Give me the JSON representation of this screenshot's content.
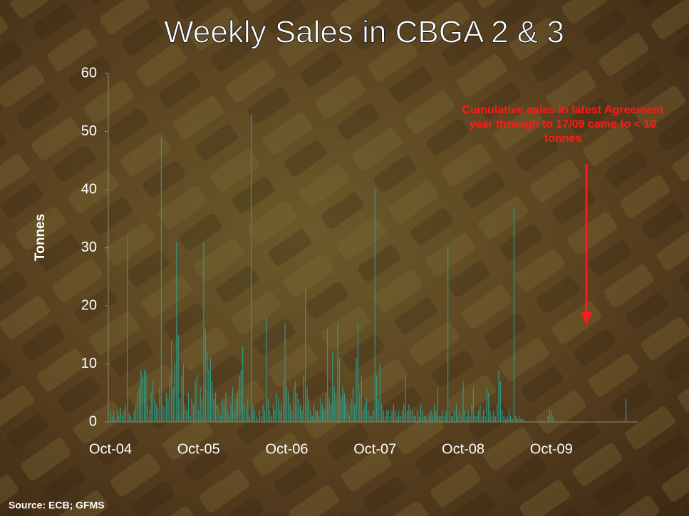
{
  "chart_data": {
    "type": "bar",
    "title": "Weekly Sales in CBGA 2 & 3",
    "y_label": "Tonnes",
    "annotation": "Cumulative sales in latest Agreement year through to 17/09 came to < 10 tonnes",
    "source": "Source: ECB; GFMS",
    "color": "#2f9a86",
    "ylim": [
      0,
      60
    ],
    "yticks": [
      0,
      10,
      20,
      30,
      40,
      50,
      60
    ],
    "categories": [
      "Oct-04",
      null,
      null,
      null,
      null,
      null,
      null,
      null,
      null,
      null,
      null,
      null,
      null,
      null,
      null,
      null,
      null,
      null,
      null,
      null,
      null,
      null,
      null,
      null,
      null,
      null,
      null,
      null,
      null,
      null,
      null,
      null,
      null,
      null,
      null,
      null,
      null,
      null,
      null,
      null,
      null,
      null,
      null,
      null,
      null,
      null,
      null,
      null,
      null,
      null,
      null,
      null,
      "Oct-05",
      null,
      null,
      null,
      null,
      null,
      null,
      null,
      null,
      null,
      null,
      null,
      null,
      null,
      null,
      null,
      null,
      null,
      null,
      null,
      null,
      null,
      null,
      null,
      null,
      null,
      null,
      null,
      null,
      null,
      null,
      null,
      null,
      null,
      null,
      null,
      null,
      null,
      null,
      null,
      null,
      null,
      null,
      null,
      null,
      null,
      null,
      null,
      null,
      null,
      null,
      null,
      "Oct-06",
      null,
      null,
      null,
      null,
      null,
      null,
      null,
      null,
      null,
      null,
      null,
      null,
      null,
      null,
      null,
      null,
      null,
      null,
      null,
      null,
      null,
      null,
      null,
      null,
      null,
      null,
      null,
      null,
      null,
      null,
      null,
      null,
      null,
      null,
      null,
      null,
      null,
      null,
      null,
      null,
      null,
      null,
      null,
      null,
      null,
      null,
      null,
      null,
      null,
      null,
      null,
      "Oct-07",
      null,
      null,
      null,
      null,
      null,
      null,
      null,
      null,
      null,
      null,
      null,
      null,
      null,
      null,
      null,
      null,
      null,
      null,
      null,
      null,
      null,
      null,
      null,
      null,
      null,
      null,
      null,
      null,
      null,
      null,
      null,
      null,
      null,
      null,
      null,
      null,
      null,
      null,
      null,
      null,
      null,
      null,
      null,
      null,
      null,
      null,
      null,
      null,
      null,
      null,
      null,
      "Oct-08",
      null,
      null,
      null,
      null,
      null,
      null,
      null,
      null,
      null,
      null,
      null,
      null,
      null,
      null,
      null,
      null,
      null,
      null,
      null,
      null,
      null,
      null,
      null,
      null,
      null,
      null,
      null,
      null,
      null,
      null,
      null,
      null,
      null,
      null,
      null,
      null,
      null,
      null,
      null,
      null,
      null,
      null,
      null,
      null,
      null,
      null,
      null,
      null,
      null,
      null,
      null,
      "Oct-09",
      null,
      null,
      null,
      null,
      null,
      null,
      null,
      null,
      null,
      null,
      null,
      null,
      null,
      null,
      null,
      null,
      null,
      null,
      null,
      null,
      null,
      null,
      null,
      null,
      null,
      null,
      null,
      null,
      null,
      null,
      null,
      null,
      null,
      null,
      null,
      null,
      null,
      null,
      null,
      null,
      null,
      null,
      null,
      null
    ],
    "values": [
      2,
      1,
      2,
      0.5,
      2,
      1,
      2.5,
      1,
      2,
      3,
      32,
      1.5,
      1,
      0.5,
      2,
      3,
      5,
      6,
      9,
      8,
      9,
      8.5,
      3,
      2,
      5,
      7,
      4,
      3,
      2.5,
      6,
      49,
      3,
      2.5,
      5,
      4,
      8,
      14,
      6,
      10,
      31,
      15,
      4,
      8,
      10,
      3,
      2,
      5,
      1,
      4,
      3,
      7,
      8,
      2,
      6,
      4,
      31,
      16,
      12,
      9,
      11,
      7,
      4,
      5,
      3,
      2,
      1,
      4,
      3,
      5,
      2,
      1,
      3,
      6,
      2,
      4,
      5,
      8,
      9,
      13,
      3,
      2,
      4,
      1,
      53,
      3,
      2,
      1,
      0.5,
      2,
      1,
      3,
      2,
      18,
      4,
      2,
      1,
      3,
      2,
      5,
      4,
      2,
      3,
      7,
      17,
      6,
      5,
      3,
      2,
      6,
      7,
      5,
      4,
      3,
      2,
      8,
      23,
      6,
      4,
      2,
      1,
      3,
      2,
      2,
      1,
      4,
      3,
      2,
      5,
      16,
      4,
      3,
      12,
      6,
      5,
      17,
      11,
      4,
      6,
      5,
      3,
      2,
      1,
      4,
      6,
      3,
      11,
      17,
      5,
      8,
      2,
      3,
      4,
      2,
      1,
      1,
      2,
      40,
      8,
      4,
      10,
      3,
      2,
      1,
      2,
      2,
      1,
      2,
      3,
      2,
      1,
      2,
      1,
      2,
      3,
      8,
      2,
      3,
      2,
      2,
      1,
      1,
      2,
      1,
      3,
      2,
      1,
      1,
      0.5,
      1,
      2,
      1,
      3,
      2,
      6,
      1,
      1,
      2,
      1,
      2,
      30,
      2,
      1,
      1,
      2,
      3,
      1,
      2,
      1,
      7,
      2,
      1,
      2,
      1,
      3,
      6,
      1,
      1,
      2,
      3,
      1,
      2,
      1,
      6,
      5,
      2,
      1,
      2,
      1,
      3,
      9,
      7,
      2,
      1,
      0.5,
      1,
      2,
      1,
      0.5,
      37,
      1,
      0.5,
      1,
      0.5,
      0.5,
      0.3,
      0,
      0,
      0,
      0.3,
      0,
      0,
      0,
      0,
      0,
      0,
      0,
      0,
      0,
      1,
      2,
      2,
      1,
      0,
      0,
      0,
      0,
      0,
      0,
      0,
      0,
      0,
      0,
      0,
      0,
      0,
      0,
      0,
      0,
      0,
      0,
      0,
      0,
      0,
      0,
      0,
      0,
      0,
      0,
      0,
      0,
      0,
      0,
      0,
      0,
      0,
      0,
      0,
      0,
      0,
      0,
      0,
      0,
      0,
      0,
      4
    ]
  }
}
